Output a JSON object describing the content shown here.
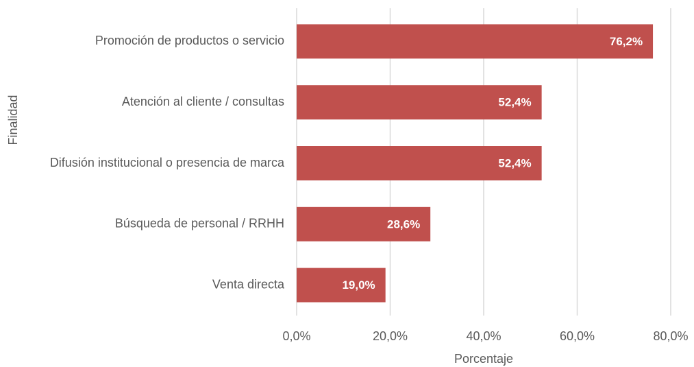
{
  "chart_data": {
    "type": "bar",
    "orientation": "horizontal",
    "categories": [
      "Promoción de productos o servicio",
      "Atención al cliente / consultas",
      "Difusión institucional o presencia de marca",
      "Búsqueda de personal / RRHH",
      "Venta directa"
    ],
    "values": [
      76.2,
      52.4,
      52.4,
      28.6,
      19.0
    ],
    "value_labels": [
      "76,2%",
      "52,4%",
      "52,4%",
      "28,6%",
      "19,0%"
    ],
    "color": "#c0504d",
    "xlim": [
      0,
      80
    ],
    "xticks": [
      {
        "value": 0,
        "label": "0,0%"
      },
      {
        "value": 20,
        "label": "20,0%"
      },
      {
        "value": 40,
        "label": "40,0%"
      },
      {
        "value": 60,
        "label": "60,0%"
      },
      {
        "value": 80,
        "label": "80,0%"
      }
    ],
    "x_label": "Porcentaje",
    "y_label": "Finalidad",
    "grid": true
  }
}
